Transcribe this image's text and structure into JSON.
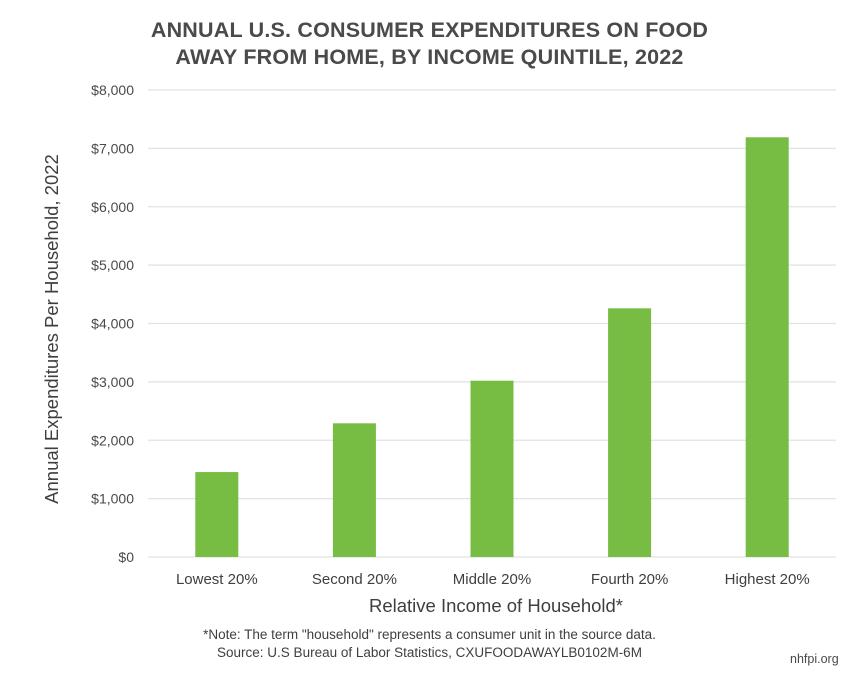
{
  "chart_data": {
    "type": "bar",
    "title": "ANNUAL U.S. CONSUMER EXPENDITURES ON FOOD AWAY FROM HOME, BY INCOME QUINTILE, 2022",
    "title_lines": [
      "ANNUAL U.S. CONSUMER EXPENDITURES ON FOOD",
      "AWAY FROM HOME, BY INCOME QUINTILE, 2022"
    ],
    "categories": [
      "Lowest 20%",
      "Second 20%",
      "Middle 20%",
      "Fourth 20%",
      "Highest 20%"
    ],
    "values": [
      1455,
      2290,
      3020,
      4260,
      7190
    ],
    "xlabel": "Relative Income of Household*",
    "ylabel": "Annual Expenditures Per Household, 2022",
    "ylim": [
      0,
      8000
    ],
    "yticks": [
      0,
      1000,
      2000,
      3000,
      4000,
      5000,
      6000,
      7000,
      8000
    ],
    "ytick_labels": [
      "$0",
      "$1,000",
      "$2,000",
      "$3,000",
      "$4,000",
      "$5,000",
      "$6,000",
      "$7,000",
      "$8,000"
    ],
    "grid": true,
    "bar_color": "#77bc43",
    "legend": "none"
  },
  "notes": {
    "note": "*Note: The term \"household\" represents a consumer unit in the source data.",
    "source": "Source: U.S  Bureau of Labor Statistics, CXUFOODAWAYLB0102M-6M",
    "brand": "nhfpi.org"
  }
}
